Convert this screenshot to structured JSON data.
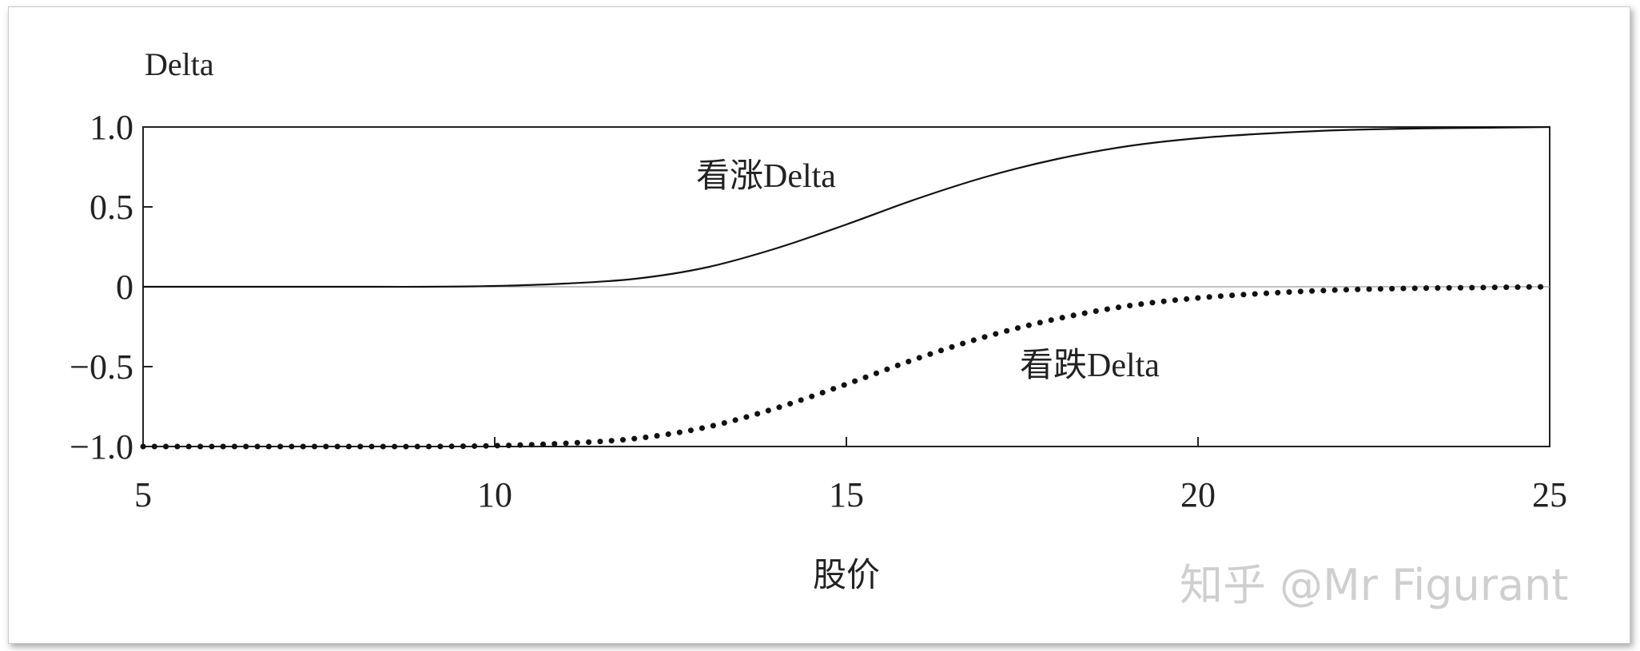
{
  "chart_data": {
    "type": "line",
    "ylabel": "Delta",
    "xlabel": "股价",
    "xlim": [
      5,
      25
    ],
    "ylim": [
      -1.0,
      1.0
    ],
    "x_ticks": [
      5,
      10,
      15,
      20,
      25
    ],
    "x_tick_labels": [
      "5",
      "10",
      "15",
      "20",
      "25"
    ],
    "y_ticks": [
      1.0,
      0.5,
      0,
      -0.5,
      -1.0
    ],
    "y_tick_labels": [
      "1.0",
      "0.5",
      "0",
      "−0.5",
      "−1.0"
    ],
    "x": [
      5,
      6,
      7,
      8,
      9,
      10,
      11,
      12,
      13,
      14,
      15,
      16,
      17,
      18,
      19,
      20,
      21,
      22,
      23,
      24,
      25
    ],
    "series": [
      {
        "name": "看涨Delta",
        "style": "solid",
        "values": [
          0.0,
          0.0,
          0.0,
          0.0,
          0.0,
          0.005,
          0.02,
          0.05,
          0.12,
          0.24,
          0.39,
          0.55,
          0.69,
          0.8,
          0.88,
          0.93,
          0.96,
          0.98,
          0.99,
          0.995,
          1.0
        ]
      },
      {
        "name": "看跌Delta",
        "style": "dotted",
        "values": [
          -1.0,
          -1.0,
          -1.0,
          -1.0,
          -1.0,
          -0.995,
          -0.98,
          -0.95,
          -0.88,
          -0.76,
          -0.61,
          -0.45,
          -0.31,
          -0.2,
          -0.12,
          -0.07,
          -0.04,
          -0.02,
          -0.01,
          -0.005,
          0.0
        ]
      }
    ],
    "grid": false,
    "legend": "none"
  },
  "watermark": "知乎 @Mr Figurant"
}
